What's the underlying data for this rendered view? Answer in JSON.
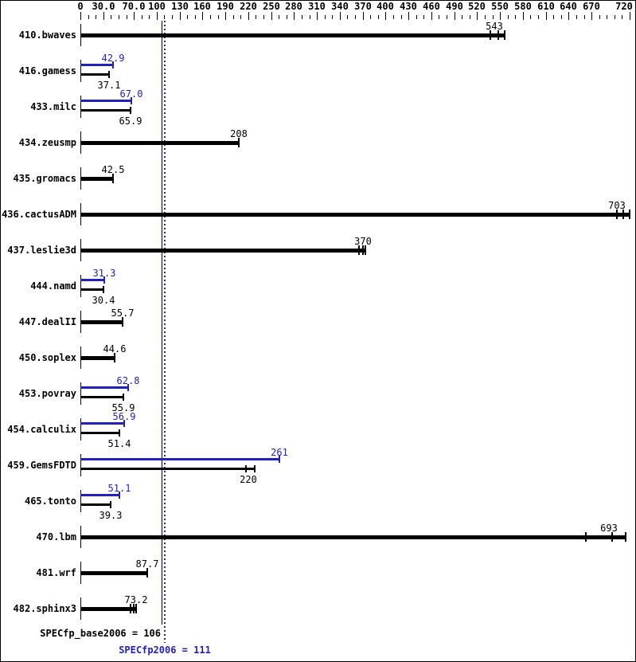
{
  "chart_data": {
    "type": "bar",
    "orientation": "horizontal",
    "legend_position": "none",
    "grid": false,
    "axis": {
      "min": 0,
      "max": 720,
      "minor_step": 10,
      "labeled_ticks": [
        {
          "v": 0,
          "label": "0"
        },
        {
          "v": 30,
          "label": "30.0"
        },
        {
          "v": 70,
          "label": "70.0"
        },
        {
          "v": 100,
          "label": "100"
        },
        {
          "v": 130,
          "label": "130"
        },
        {
          "v": 160,
          "label": "160"
        },
        {
          "v": 190,
          "label": "190"
        },
        {
          "v": 220,
          "label": "220"
        },
        {
          "v": 250,
          "label": "250"
        },
        {
          "v": 280,
          "label": "280"
        },
        {
          "v": 310,
          "label": "310"
        },
        {
          "v": 340,
          "label": "340"
        },
        {
          "v": 370,
          "label": "370"
        },
        {
          "v": 400,
          "label": "400"
        },
        {
          "v": 430,
          "label": "430"
        },
        {
          "v": 460,
          "label": "460"
        },
        {
          "v": 490,
          "label": "490"
        },
        {
          "v": 520,
          "label": "520"
        },
        {
          "v": 550,
          "label": "550"
        },
        {
          "v": 580,
          "label": "580"
        },
        {
          "v": 610,
          "label": "610"
        },
        {
          "v": 640,
          "label": "640"
        },
        {
          "v": 670,
          "label": "670"
        },
        {
          "v": 720,
          "label": "720"
        }
      ]
    },
    "series_colors": {
      "base": "#000000",
      "peak": "#2222bb"
    },
    "benchmarks": [
      {
        "name": "410.bwaves",
        "base": {
          "label": "543",
          "value": 543,
          "runs": [
            537,
            548,
            556
          ]
        },
        "peak": null
      },
      {
        "name": "416.gamess",
        "base": {
          "label": "37.1",
          "value": 37.1,
          "runs": []
        },
        "peak": {
          "label": "42.9",
          "value": 42.9,
          "runs": []
        }
      },
      {
        "name": "433.milc",
        "base": {
          "label": "65.9",
          "value": 65.9,
          "runs": []
        },
        "peak": {
          "label": "67.0",
          "value": 67.0,
          "runs": []
        }
      },
      {
        "name": "434.zeusmp",
        "base": {
          "label": "208",
          "value": 208,
          "runs": []
        },
        "peak": null
      },
      {
        "name": "435.gromacs",
        "base": {
          "label": "42.5",
          "value": 42.5,
          "runs": []
        },
        "peak": null
      },
      {
        "name": "436.cactusADM",
        "base": {
          "label": "703",
          "value": 703,
          "runs": [
            703,
            712,
            720
          ]
        },
        "peak": null
      },
      {
        "name": "437.leslie3d",
        "base": {
          "label": "370",
          "value": 370,
          "runs": [
            365,
            370,
            374
          ]
        },
        "peak": null
      },
      {
        "name": "444.namd",
        "base": {
          "label": "30.4",
          "value": 30.4,
          "runs": []
        },
        "peak": {
          "label": "31.3",
          "value": 31.3,
          "runs": []
        }
      },
      {
        "name": "447.dealII",
        "base": {
          "label": "55.7",
          "value": 55.7,
          "runs": []
        },
        "peak": null
      },
      {
        "name": "450.soplex",
        "base": {
          "label": "44.6",
          "value": 44.6,
          "runs": []
        },
        "peak": null
      },
      {
        "name": "453.povray",
        "base": {
          "label": "55.9",
          "value": 55.9,
          "runs": []
        },
        "peak": {
          "label": "62.8",
          "value": 62.8,
          "runs": []
        }
      },
      {
        "name": "454.calculix",
        "base": {
          "label": "51.4",
          "value": 51.4,
          "runs": []
        },
        "peak": {
          "label": "56.9",
          "value": 56.9,
          "runs": []
        }
      },
      {
        "name": "459.GemsFDTD",
        "base": {
          "label": "220",
          "value": 220,
          "runs": [
            217,
            229
          ]
        },
        "peak": {
          "label": "261",
          "value": 261,
          "runs": []
        }
      },
      {
        "name": "465.tonto",
        "base": {
          "label": "39.3",
          "value": 39.3,
          "runs": []
        },
        "peak": {
          "label": "51.1",
          "value": 51.1,
          "runs": []
        }
      },
      {
        "name": "470.lbm",
        "base": {
          "label": "693",
          "value": 693,
          "runs": [
            663,
            697,
            715
          ]
        },
        "peak": null
      },
      {
        "name": "481.wrf",
        "base": {
          "label": "87.7",
          "value": 87.7,
          "runs": []
        },
        "peak": null
      },
      {
        "name": "482.sphinx3",
        "base": {
          "label": "73.2",
          "value": 73.2,
          "runs": [
            66,
            70,
            73.2
          ]
        },
        "peak": null
      }
    ],
    "reference_lines": [
      {
        "name": "base_mean",
        "value": 106,
        "style": "solid",
        "color": "#000000"
      },
      {
        "name": "peak_mean",
        "value": 111,
        "style": "dotted",
        "color": "#2222bb"
      }
    ],
    "footer": {
      "base_label": "SPECfp_base2006 = 106",
      "peak_label": "SPECfp2006 = 111"
    }
  }
}
